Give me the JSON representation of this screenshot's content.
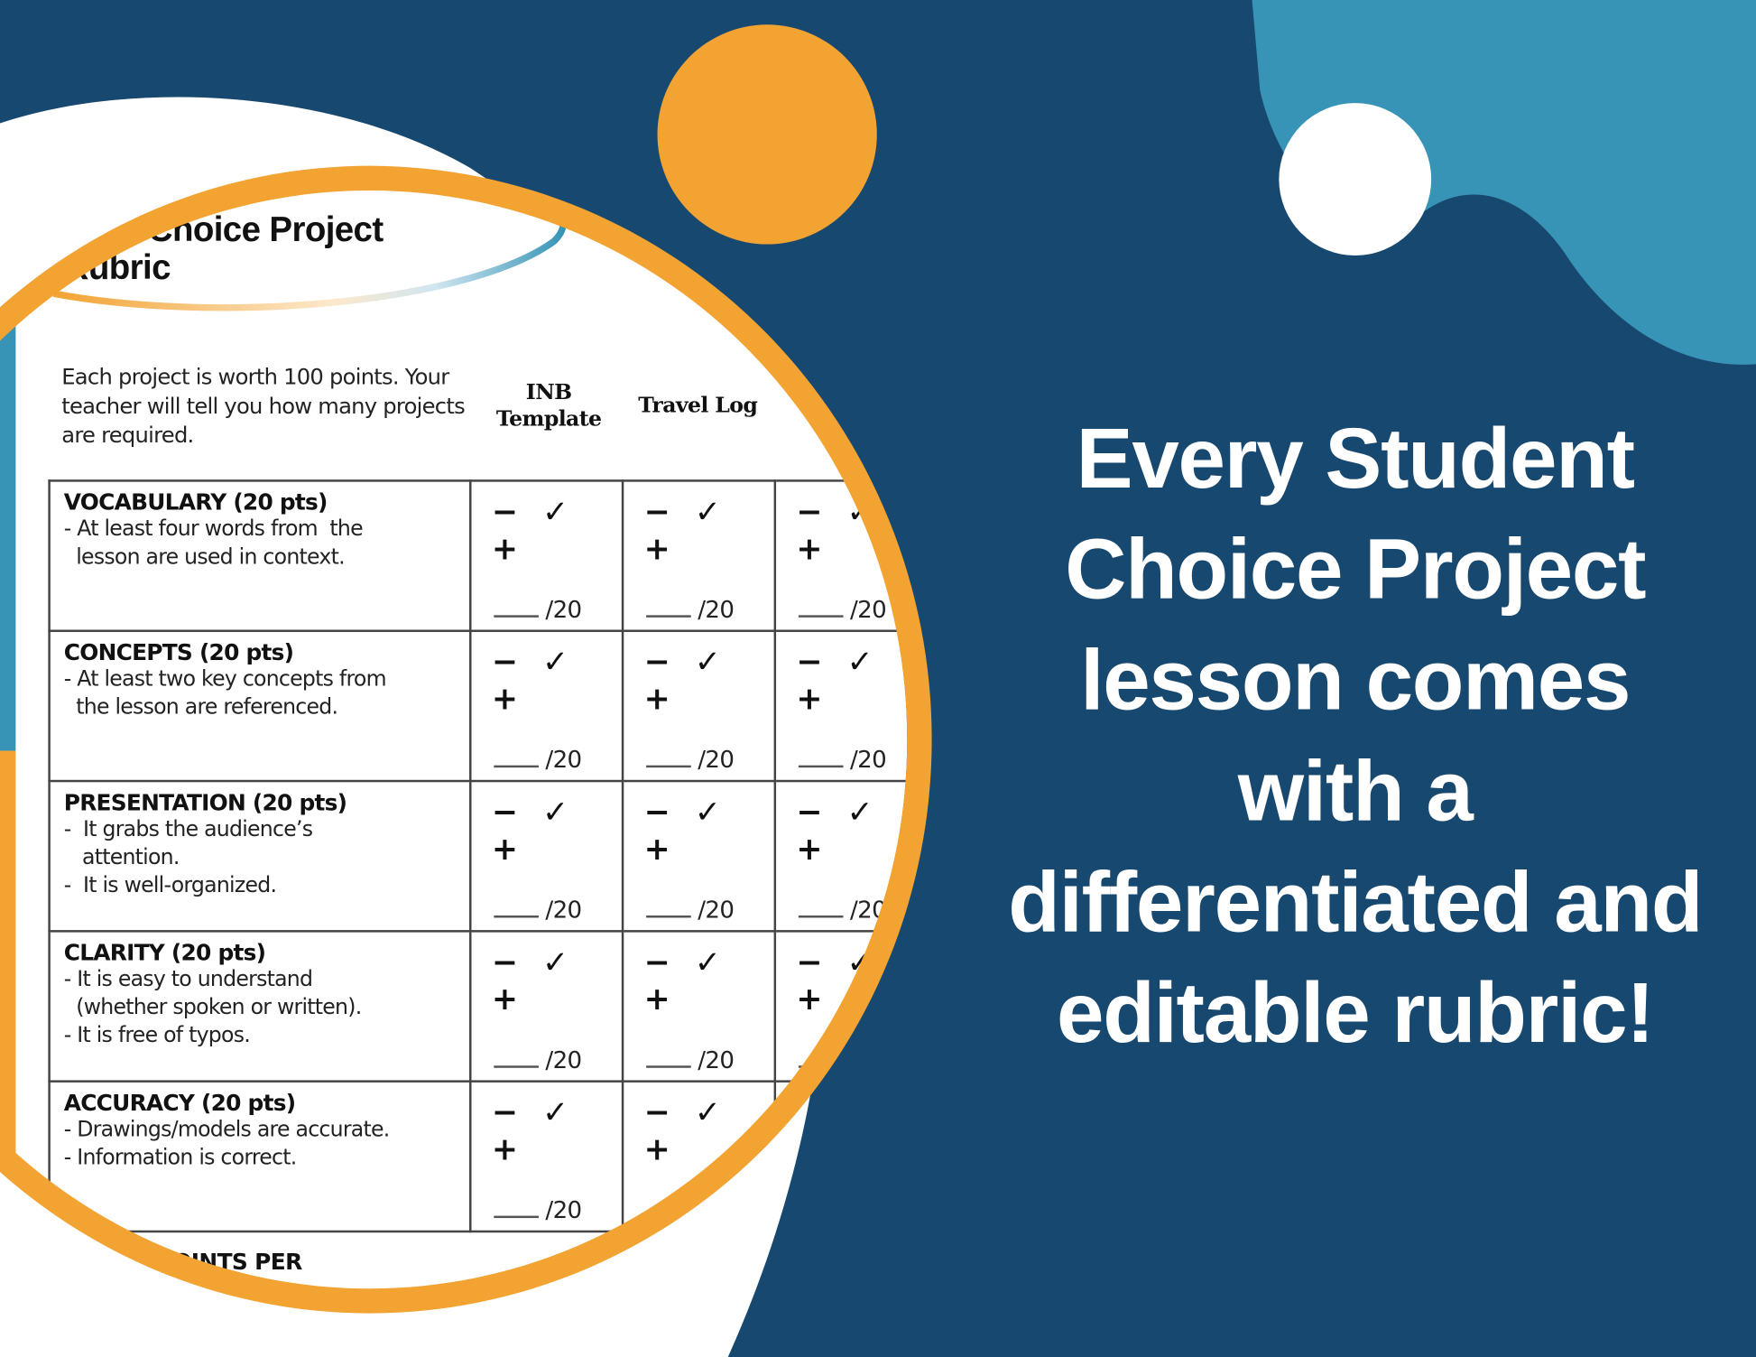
{
  "colors": {
    "navy": "#17486f",
    "light_blue": "#3794b6",
    "orange": "#f2a332",
    "white": "#ffffff"
  },
  "document": {
    "title_line1": "Student Choice Project",
    "title_line2": "Rubric",
    "intro": "Each project is worth 100 points. Your teacher will tell you how many projects are required.",
    "columns": [
      "INB Template",
      "Travel Log"
    ],
    "marks": "− ✓ +",
    "points_label": "/20",
    "criteria": [
      {
        "title": "VOCABULARY (20 pts)",
        "lines": [
          "- At least four words from  the",
          "  lesson are used in context."
        ]
      },
      {
        "title": "CONCEPTS (20 pts)",
        "lines": [
          "- At least two key concepts from",
          "  the lesson are referenced."
        ]
      },
      {
        "title": "PRESENTATION (20 pts)",
        "lines": [
          "-  It grabs the audience’s",
          "   attention.",
          "-  It is well-organized."
        ]
      },
      {
        "title": "CLARITY (20 pts)",
        "lines": [
          "- It is easy to understand",
          "  (whether spoken or written).",
          "- It is free of typos."
        ]
      },
      {
        "title": "ACCURACY (20 pts)",
        "lines": [
          "- Drawings/models are accurate.",
          "- Information is correct."
        ]
      }
    ],
    "total_label": "POINTS PER"
  },
  "headline": "Every Student Choice Project lesson comes with a differentiated and editable rubric!"
}
